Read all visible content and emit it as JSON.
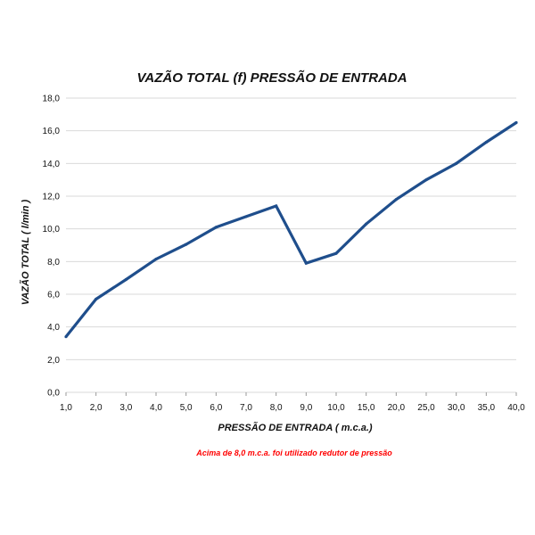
{
  "chart_data": {
    "type": "line",
    "title": "VAZÃO TOTAL (f) PRESSÃO DE ENTRADA",
    "xlabel": "PRESSÃO DE ENTRADA ( m.c.a.)",
    "ylabel": "VAZÃO TOTAL ( l/min )",
    "categories": [
      "1,0",
      "2,0",
      "3,0",
      "4,0",
      "5,0",
      "6,0",
      "7,0",
      "8,0",
      "9,0",
      "10,0",
      "15,0",
      "20,0",
      "25,0",
      "30,0",
      "35,0",
      "40,0"
    ],
    "x_scale": "categorical (equally spaced)",
    "series": [
      {
        "values": [
          3.4,
          5.7,
          6.9,
          8.15,
          9.05,
          10.1,
          10.75,
          11.4,
          7.9,
          8.5,
          10.3,
          11.8,
          13.0,
          14.0,
          15.3,
          16.5
        ]
      }
    ],
    "ylim": [
      0,
      18
    ],
    "yticks": [
      "0,0",
      "2,0",
      "4,0",
      "6,0",
      "8,0",
      "10,0",
      "12,0",
      "14,0",
      "16,0",
      "18,0"
    ],
    "ytick_values": [
      0,
      2,
      4,
      6,
      8,
      10,
      12,
      14,
      16,
      18
    ],
    "grid": "horizontal",
    "line_color": "#1f4e8c",
    "grid_color": "#d9d9d9",
    "note": "Acima de 8,0 m.c.a. foi utilizado redutor de pressão",
    "note_color": "#ff0000"
  }
}
